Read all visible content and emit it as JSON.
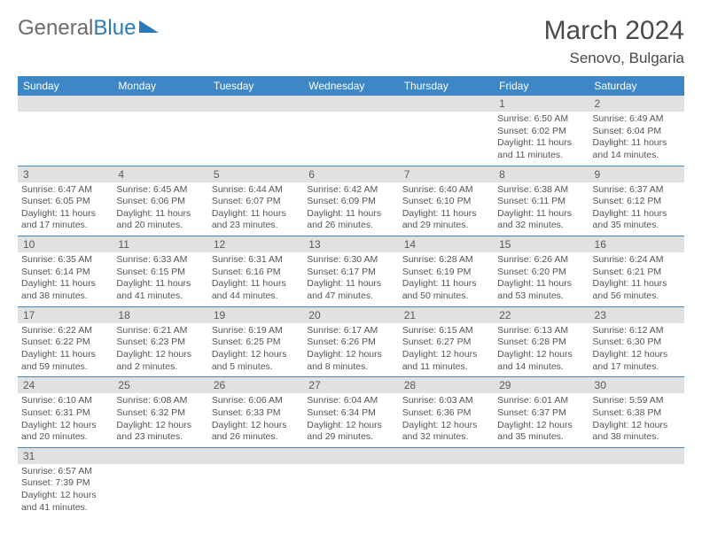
{
  "logo": {
    "part1": "General",
    "part2": "Blue"
  },
  "title": "March 2024",
  "location": "Senovo, Bulgaria",
  "header_bg": "#3d87c7",
  "header_text": "#ffffff",
  "daynum_bg": "#e1e1e1",
  "cell_border": "#3d87c7",
  "text_color": "#555555",
  "days": [
    "Sunday",
    "Monday",
    "Tuesday",
    "Wednesday",
    "Thursday",
    "Friday",
    "Saturday"
  ],
  "weeks": [
    [
      null,
      null,
      null,
      null,
      null,
      {
        "n": "1",
        "sr": "6:50 AM",
        "ss": "6:02 PM",
        "dl": "11 hours and 11 minutes."
      },
      {
        "n": "2",
        "sr": "6:49 AM",
        "ss": "6:04 PM",
        "dl": "11 hours and 14 minutes."
      }
    ],
    [
      {
        "n": "3",
        "sr": "6:47 AM",
        "ss": "6:05 PM",
        "dl": "11 hours and 17 minutes."
      },
      {
        "n": "4",
        "sr": "6:45 AM",
        "ss": "6:06 PM",
        "dl": "11 hours and 20 minutes."
      },
      {
        "n": "5",
        "sr": "6:44 AM",
        "ss": "6:07 PM",
        "dl": "11 hours and 23 minutes."
      },
      {
        "n": "6",
        "sr": "6:42 AM",
        "ss": "6:09 PM",
        "dl": "11 hours and 26 minutes."
      },
      {
        "n": "7",
        "sr": "6:40 AM",
        "ss": "6:10 PM",
        "dl": "11 hours and 29 minutes."
      },
      {
        "n": "8",
        "sr": "6:38 AM",
        "ss": "6:11 PM",
        "dl": "11 hours and 32 minutes."
      },
      {
        "n": "9",
        "sr": "6:37 AM",
        "ss": "6:12 PM",
        "dl": "11 hours and 35 minutes."
      }
    ],
    [
      {
        "n": "10",
        "sr": "6:35 AM",
        "ss": "6:14 PM",
        "dl": "11 hours and 38 minutes."
      },
      {
        "n": "11",
        "sr": "6:33 AM",
        "ss": "6:15 PM",
        "dl": "11 hours and 41 minutes."
      },
      {
        "n": "12",
        "sr": "6:31 AM",
        "ss": "6:16 PM",
        "dl": "11 hours and 44 minutes."
      },
      {
        "n": "13",
        "sr": "6:30 AM",
        "ss": "6:17 PM",
        "dl": "11 hours and 47 minutes."
      },
      {
        "n": "14",
        "sr": "6:28 AM",
        "ss": "6:19 PM",
        "dl": "11 hours and 50 minutes."
      },
      {
        "n": "15",
        "sr": "6:26 AM",
        "ss": "6:20 PM",
        "dl": "11 hours and 53 minutes."
      },
      {
        "n": "16",
        "sr": "6:24 AM",
        "ss": "6:21 PM",
        "dl": "11 hours and 56 minutes."
      }
    ],
    [
      {
        "n": "17",
        "sr": "6:22 AM",
        "ss": "6:22 PM",
        "dl": "11 hours and 59 minutes."
      },
      {
        "n": "18",
        "sr": "6:21 AM",
        "ss": "6:23 PM",
        "dl": "12 hours and 2 minutes."
      },
      {
        "n": "19",
        "sr": "6:19 AM",
        "ss": "6:25 PM",
        "dl": "12 hours and 5 minutes."
      },
      {
        "n": "20",
        "sr": "6:17 AM",
        "ss": "6:26 PM",
        "dl": "12 hours and 8 minutes."
      },
      {
        "n": "21",
        "sr": "6:15 AM",
        "ss": "6:27 PM",
        "dl": "12 hours and 11 minutes."
      },
      {
        "n": "22",
        "sr": "6:13 AM",
        "ss": "6:28 PM",
        "dl": "12 hours and 14 minutes."
      },
      {
        "n": "23",
        "sr": "6:12 AM",
        "ss": "6:30 PM",
        "dl": "12 hours and 17 minutes."
      }
    ],
    [
      {
        "n": "24",
        "sr": "6:10 AM",
        "ss": "6:31 PM",
        "dl": "12 hours and 20 minutes."
      },
      {
        "n": "25",
        "sr": "6:08 AM",
        "ss": "6:32 PM",
        "dl": "12 hours and 23 minutes."
      },
      {
        "n": "26",
        "sr": "6:06 AM",
        "ss": "6:33 PM",
        "dl": "12 hours and 26 minutes."
      },
      {
        "n": "27",
        "sr": "6:04 AM",
        "ss": "6:34 PM",
        "dl": "12 hours and 29 minutes."
      },
      {
        "n": "28",
        "sr": "6:03 AM",
        "ss": "6:36 PM",
        "dl": "12 hours and 32 minutes."
      },
      {
        "n": "29",
        "sr": "6:01 AM",
        "ss": "6:37 PM",
        "dl": "12 hours and 35 minutes."
      },
      {
        "n": "30",
        "sr": "5:59 AM",
        "ss": "6:38 PM",
        "dl": "12 hours and 38 minutes."
      }
    ],
    [
      {
        "n": "31",
        "sr": "6:57 AM",
        "ss": "7:39 PM",
        "dl": "12 hours and 41 minutes."
      },
      null,
      null,
      null,
      null,
      null,
      null
    ]
  ],
  "labels": {
    "sunrise": "Sunrise:",
    "sunset": "Sunset:",
    "daylight": "Daylight:"
  }
}
